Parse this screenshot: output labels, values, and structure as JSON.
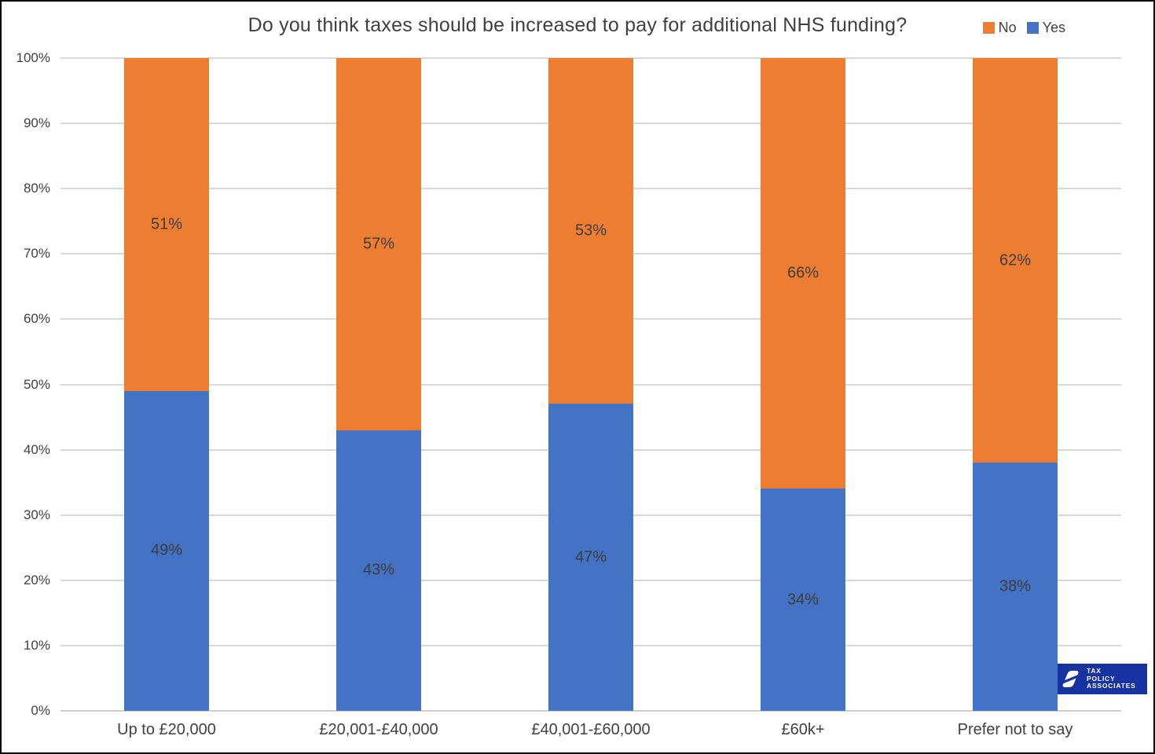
{
  "chart_data": {
    "type": "bar",
    "variant": "100%-stacked-column",
    "title": "Do you think taxes should be increased to pay for additional NHS funding?",
    "categories": [
      "Up to £20,000",
      "£20,001-£40,000",
      "£40,001-£60,000",
      "£60k+",
      "Prefer not to say"
    ],
    "series": [
      {
        "name": "Yes",
        "color": "#4472C4",
        "values": [
          49,
          43,
          47,
          34,
          38
        ]
      },
      {
        "name": "No",
        "color": "#ED7D31",
        "values": [
          51,
          57,
          53,
          66,
          62
        ]
      }
    ],
    "value_suffix": "%",
    "y_ticks": [
      "0%",
      "10%",
      "20%",
      "30%",
      "40%",
      "50%",
      "60%",
      "70%",
      "80%",
      "90%",
      "100%"
    ],
    "ylim": [
      0,
      100
    ],
    "grid": true,
    "legend_position": "top-right",
    "legend_order": [
      "No",
      "Yes"
    ],
    "xlabel": "",
    "ylabel": ""
  },
  "legend": {
    "items": [
      {
        "label": "No",
        "color": "#ED7D31"
      },
      {
        "label": "Yes",
        "color": "#4472C4"
      }
    ]
  },
  "logo": {
    "lines": [
      "TAX",
      "POLICY",
      "ASSOCIATES"
    ],
    "bg_color": "#1733A2"
  },
  "colors": {
    "background": "#FFFFFF",
    "border": "#000000",
    "gridline": "#D9D9D9",
    "axis_line": "#CFCFCF",
    "text": "#404040"
  }
}
